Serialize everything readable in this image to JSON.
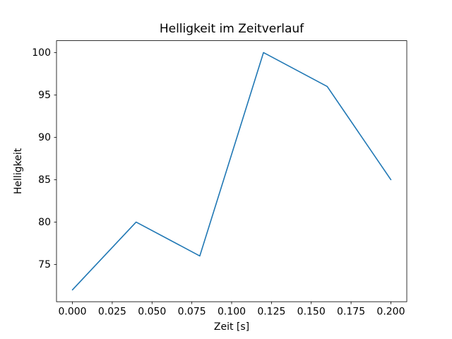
{
  "chart_data": {
    "type": "line",
    "title": "Helligkeit im Zeitverlauf",
    "xlabel": "Zeit [s]",
    "ylabel": "Helligkeit",
    "x": [
      0.0,
      0.04,
      0.08,
      0.12,
      0.16,
      0.2
    ],
    "y": [
      72,
      80,
      76,
      100,
      96,
      85
    ],
    "xlim": [
      -0.01,
      0.21
    ],
    "ylim": [
      70.6,
      101.4
    ],
    "xticks": [
      0.0,
      0.025,
      0.05,
      0.075,
      0.1,
      0.125,
      0.15,
      0.175,
      0.2
    ],
    "xtick_labels": [
      "0.000",
      "0.025",
      "0.050",
      "0.075",
      "0.100",
      "0.125",
      "0.150",
      "0.175",
      "0.200"
    ],
    "yticks": [
      75,
      80,
      85,
      90,
      95,
      100
    ],
    "ytick_labels": [
      "75",
      "80",
      "85",
      "90",
      "95",
      "100"
    ],
    "line_color": "#1f77b4",
    "axis_color": "#000000",
    "background": "#ffffff",
    "grid": false,
    "legend": null
  }
}
